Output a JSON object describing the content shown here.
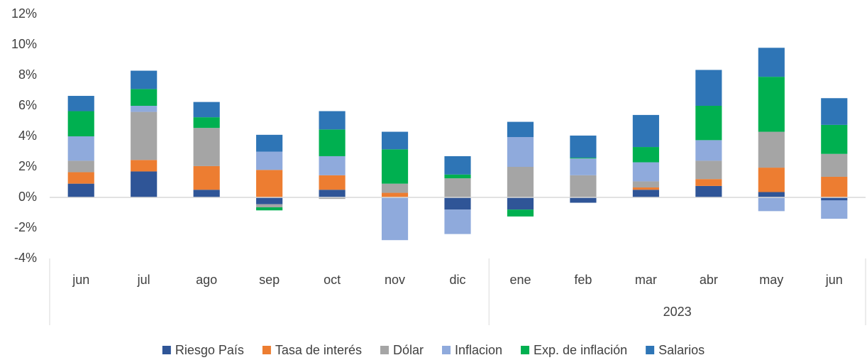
{
  "chart_data": {
    "type": "stacked_bar",
    "categories": [
      "jun",
      "jul",
      "ago",
      "sep",
      "oct",
      "nov",
      "dic",
      "ene",
      "feb",
      "mar",
      "abr",
      "may",
      "jun"
    ],
    "category_groups": [
      {
        "label": null,
        "count": 7
      },
      {
        "label": "2023",
        "count": 6
      }
    ],
    "series": [
      {
        "name": "Riesgo País",
        "color": "#2f5597",
        "values": [
          0.9,
          1.7,
          0.5,
          -0.45,
          0.5,
          0,
          -0.8,
          -0.8,
          -0.35,
          0.5,
          0.75,
          0.35,
          -0.2
        ]
      },
      {
        "name": "Tasa de interés",
        "color": "#ed7d31",
        "values": [
          0.75,
          0.75,
          1.55,
          1.8,
          0.95,
          0.3,
          0,
          0,
          0,
          0.15,
          0.45,
          1.6,
          1.35
        ]
      },
      {
        "name": "Dólar",
        "color": "#a5a5a5",
        "values": [
          0.75,
          3.15,
          2.5,
          -0.2,
          -0.1,
          0.6,
          1.25,
          2.0,
          1.45,
          0.4,
          1.2,
          2.35,
          1.5
        ]
      },
      {
        "name": "Inflacion",
        "color": "#8faadc",
        "values": [
          1.6,
          0.4,
          0,
          1.2,
          1.25,
          -2.8,
          -1.6,
          1.95,
          1.1,
          1.25,
          1.35,
          -0.9,
          -1.2
        ]
      },
      {
        "name": "Exp. de inflación",
        "color": "#00b050",
        "values": [
          1.65,
          1.1,
          0.7,
          -0.2,
          1.75,
          2.25,
          0.25,
          -0.45,
          0.05,
          1.0,
          2.25,
          3.6,
          1.9
        ]
      },
      {
        "name": "Salarios",
        "color": "#2e75b6",
        "values": [
          1.0,
          1.2,
          1.0,
          1.1,
          1.2,
          1.15,
          1.2,
          1.0,
          1.45,
          2.1,
          2.35,
          1.9,
          1.75
        ]
      }
    ],
    "ylim": [
      -4,
      12
    ],
    "yticks": [
      {
        "value": -4,
        "label": "-4%"
      },
      {
        "value": -2,
        "label": "-2%"
      },
      {
        "value": 0,
        "label": "0%"
      },
      {
        "value": 2,
        "label": "2%"
      },
      {
        "value": 4,
        "label": "4%"
      },
      {
        "value": 6,
        "label": "6%"
      },
      {
        "value": 8,
        "label": "8%"
      },
      {
        "value": 10,
        "label": "10%"
      },
      {
        "value": 12,
        "label": "12%"
      }
    ],
    "grid": false,
    "legend": "bottom"
  }
}
